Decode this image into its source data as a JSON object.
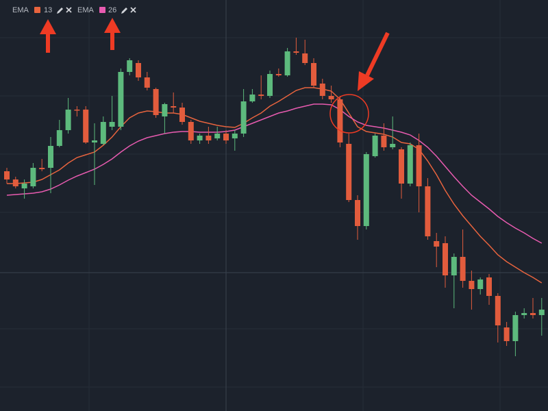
{
  "chart_data": {
    "type": "candlestick",
    "up_color": "#5dba7d",
    "down_color": "#e25c3d",
    "ylim": [
      0,
      600
    ],
    "open": [
      350,
      338,
      325,
      328,
      355,
      355,
      387,
      410,
      440,
      440,
      392,
      390,
      415,
      415,
      495,
      508,
      487,
      470,
      430,
      445,
      443,
      422,
      395,
      402,
      398,
      405,
      398,
      405,
      452,
      462,
      460,
      492,
      490,
      525,
      522,
      508,
      478,
      460,
      455,
      390,
      308,
      270,
      372,
      402,
      385,
      382,
      332,
      388,
      328,
      248,
      245,
      198,
      225,
      190,
      178,
      195,
      168,
      122,
      102,
      140,
      143,
      140
    ],
    "high": [
      355,
      342,
      338,
      362,
      368,
      400,
      425,
      457,
      445,
      445,
      420,
      430,
      460,
      500,
      515,
      512,
      495,
      472,
      450,
      465,
      450,
      425,
      405,
      415,
      415,
      410,
      410,
      470,
      470,
      490,
      497,
      500,
      530,
      545,
      542,
      515,
      485,
      475,
      460,
      405,
      315,
      378,
      405,
      420,
      430,
      385,
      392,
      405,
      340,
      260,
      255,
      230,
      265,
      205,
      195,
      200,
      172,
      130,
      145,
      150,
      165,
      165
    ],
    "low": [
      332,
      325,
      310,
      325,
      350,
      318,
      385,
      405,
      430,
      390,
      330,
      388,
      410,
      410,
      490,
      482,
      468,
      428,
      405,
      435,
      418,
      390,
      390,
      390,
      395,
      390,
      380,
      400,
      450,
      455,
      457,
      488,
      488,
      520,
      505,
      472,
      455,
      450,
      385,
      305,
      250,
      265,
      370,
      380,
      382,
      310,
      328,
      290,
      250,
      210,
      180,
      150,
      180,
      148,
      170,
      155,
      100,
      95,
      80,
      135,
      135,
      110
    ],
    "close": [
      338,
      328,
      332,
      355,
      353,
      387,
      410,
      440,
      439,
      392,
      395,
      422,
      422,
      495,
      512,
      487,
      472,
      432,
      448,
      443,
      422,
      395,
      402,
      395,
      405,
      395,
      405,
      452,
      462,
      460,
      492,
      490,
      525,
      523,
      508,
      475,
      460,
      455,
      392,
      308,
      270,
      375,
      402,
      385,
      390,
      332,
      388,
      328,
      255,
      240,
      198,
      225,
      190,
      178,
      192,
      168,
      125,
      102,
      140,
      143,
      140,
      148
    ],
    "overlays": [
      {
        "name": "EMA",
        "length": 13,
        "color": "#e8643e",
        "values": [
          332,
          332,
          333,
          334,
          338,
          345,
          352,
          362,
          370,
          374,
          378,
          388,
          400,
          415,
          428,
          435,
          438,
          437,
          435,
          435,
          433,
          428,
          423,
          420,
          417,
          415,
          414,
          420,
          428,
          435,
          445,
          452,
          460,
          468,
          472,
          472,
          470,
          467,
          455,
          435,
          415,
          408,
          406,
          404,
          400,
          392,
          390,
          382,
          365,
          345,
          322,
          302,
          285,
          270,
          255,
          242,
          228,
          218,
          210,
          202,
          195,
          187
        ]
      },
      {
        "name": "EMA",
        "length": 26,
        "color": "#e85bb0",
        "values": [
          315,
          316,
          317,
          318,
          320,
          324,
          330,
          337,
          343,
          348,
          353,
          360,
          368,
          378,
          387,
          394,
          399,
          402,
          405,
          407,
          408,
          408,
          407,
          407,
          407,
          408,
          410,
          415,
          420,
          425,
          430,
          435,
          438,
          442,
          445,
          448,
          448,
          447,
          440,
          430,
          422,
          417,
          415,
          413,
          410,
          407,
          403,
          395,
          385,
          372,
          357,
          342,
          328,
          315,
          305,
          295,
          284,
          275,
          267,
          260,
          252,
          245
        ]
      }
    ]
  }
}
